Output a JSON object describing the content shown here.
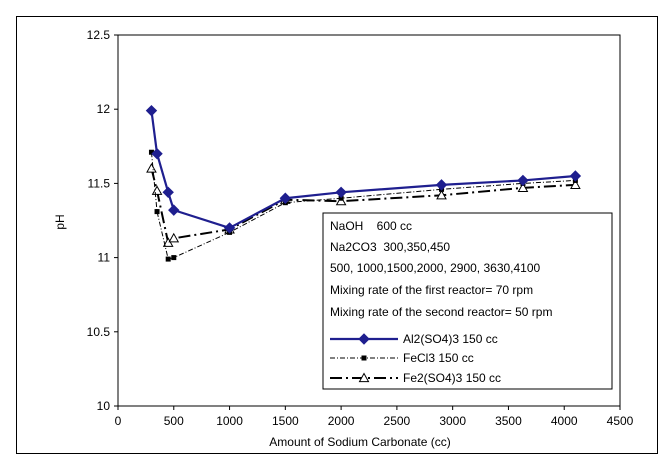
{
  "chart_data": {
    "type": "line",
    "xlabel": "Amount of Sodium Carbonate (cc)",
    "ylabel": "pH",
    "xlim": [
      0,
      4500
    ],
    "ylim": [
      10,
      12.5
    ],
    "xticks": [
      0,
      500,
      1000,
      1500,
      2000,
      2500,
      3000,
      3500,
      4000,
      4500
    ],
    "yticks": [
      10,
      10.5,
      11,
      11.5,
      12,
      12.5
    ],
    "xtick_labels": [
      "0",
      "500",
      "1000",
      "1500",
      "2000",
      "2500",
      "3000",
      "3500",
      "4000",
      "4500"
    ],
    "ytick_labels": [
      "10",
      "10.5",
      "11",
      "11.5",
      "12",
      "12.5"
    ],
    "grid": false,
    "legend_placement": "right",
    "annotations": [
      "NaOH    600 cc",
      "Na2CO3  300,350,450",
      "500, 1000,1500,2000, 2900, 3630,4100",
      "Mixing rate of the first reactor= 70 rpm",
      "Mixing rate of the second reactor= 50 rpm"
    ],
    "series": [
      {
        "name": "Al2(SO4)3   150 cc",
        "color": "#1f1f8f",
        "marker": "diamond",
        "line_style": "solid",
        "x": [
          300,
          350,
          450,
          500,
          1000,
          1500,
          2000,
          2900,
          3630,
          4100
        ],
        "y": [
          11.99,
          11.7,
          11.44,
          11.32,
          11.2,
          11.4,
          11.44,
          11.49,
          11.52,
          11.55
        ]
      },
      {
        "name": "FeCl3 150 cc",
        "color": "#000000",
        "marker": "square",
        "line_style": "dash-dot",
        "x": [
          300,
          350,
          450,
          500,
          1000,
          1500,
          2000,
          2900,
          3630,
          4100
        ],
        "y": [
          11.71,
          11.31,
          10.99,
          11.0,
          11.17,
          11.37,
          11.4,
          11.46,
          11.5,
          11.52
        ]
      },
      {
        "name": "Fe2(SO4)3 150 cc",
        "color": "#000000",
        "marker": "triangle",
        "line_style": "long-dash-dot",
        "x": [
          300,
          350,
          450,
          500,
          1000,
          1500,
          2000,
          2900,
          3630,
          4100
        ],
        "y": [
          11.6,
          11.45,
          11.1,
          11.13,
          11.19,
          11.39,
          11.38,
          11.42,
          11.47,
          11.49
        ]
      }
    ]
  }
}
